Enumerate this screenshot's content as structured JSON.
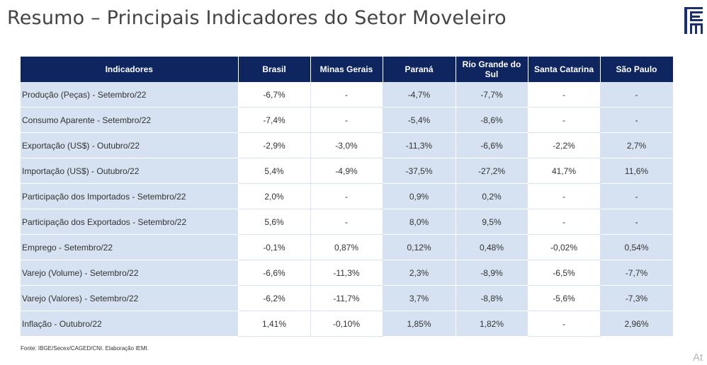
{
  "slide": {
    "title": "Resumo – Principais Indicadores do Setor Moveleiro",
    "source_note": "Fonte: IBGE/Secex/CAGED/CNI. Elaboração IEMI.",
    "corner_text": "At"
  },
  "logo": {
    "icon": "iemi-logo-icon",
    "text": "IEMI",
    "color": "#1a2f6b"
  },
  "table": {
    "header_color": "#0f2560",
    "shade_color": "#d6e2f1",
    "columns": [
      "Indicadores",
      "Brasil",
      "Minas Gerais",
      "Paraná",
      "Rio Grande do Sul",
      "Santa Catarina",
      "São Paulo"
    ],
    "rows": [
      {
        "label": "Produção (Peças) - Setembro/22",
        "values": [
          "-6,7%",
          "-",
          "-4,7%",
          "-7,7%",
          "-",
          "-"
        ]
      },
      {
        "label": "Consumo Aparente - Setembro/22",
        "values": [
          "-7,4%",
          "-",
          "-5,4%",
          "-8,6%",
          "-",
          "-"
        ]
      },
      {
        "label": "Exportação (US$) - Outubro/22",
        "values": [
          "-2,9%",
          "-3,0%",
          "-11,3%",
          "-6,6%",
          "-2,2%",
          "2,7%"
        ]
      },
      {
        "label": "Importação (US$) - Outubro/22",
        "values": [
          "5,4%",
          "-4,9%",
          "-37,5%",
          "-27,2%",
          "41,7%",
          "11,6%"
        ]
      },
      {
        "label": "Participação dos Importados - Setembro/22",
        "values": [
          "2,0%",
          "-",
          "0,9%",
          "0,2%",
          "-",
          "-"
        ]
      },
      {
        "label": "Participação dos Exportados - Setembro/22",
        "values": [
          "5,6%",
          "-",
          "8,0%",
          "9,5%",
          "-",
          "-"
        ]
      },
      {
        "label": "Emprego - Setembro/22",
        "values": [
          "-0,1%",
          "0,87%",
          "0,12%",
          "0,48%",
          "-0,02%",
          "0,54%"
        ]
      },
      {
        "label": "Varejo (Volume) - Setembro/22",
        "values": [
          "-6,6%",
          "-11,3%",
          "2,3%",
          "-8,9%",
          "-6,5%",
          "-7,7%"
        ]
      },
      {
        "label": "Varejo (Valores) - Setembro/22",
        "values": [
          "-6,2%",
          "-11,7%",
          "3,7%",
          "-8,8%",
          "-5,6%",
          "-7,3%"
        ]
      },
      {
        "label": "Inflação - Outubro/22",
        "values": [
          "1,41%",
          "-0,10%",
          "1,85%",
          "1,82%",
          "-",
          "2,96%"
        ]
      }
    ]
  }
}
